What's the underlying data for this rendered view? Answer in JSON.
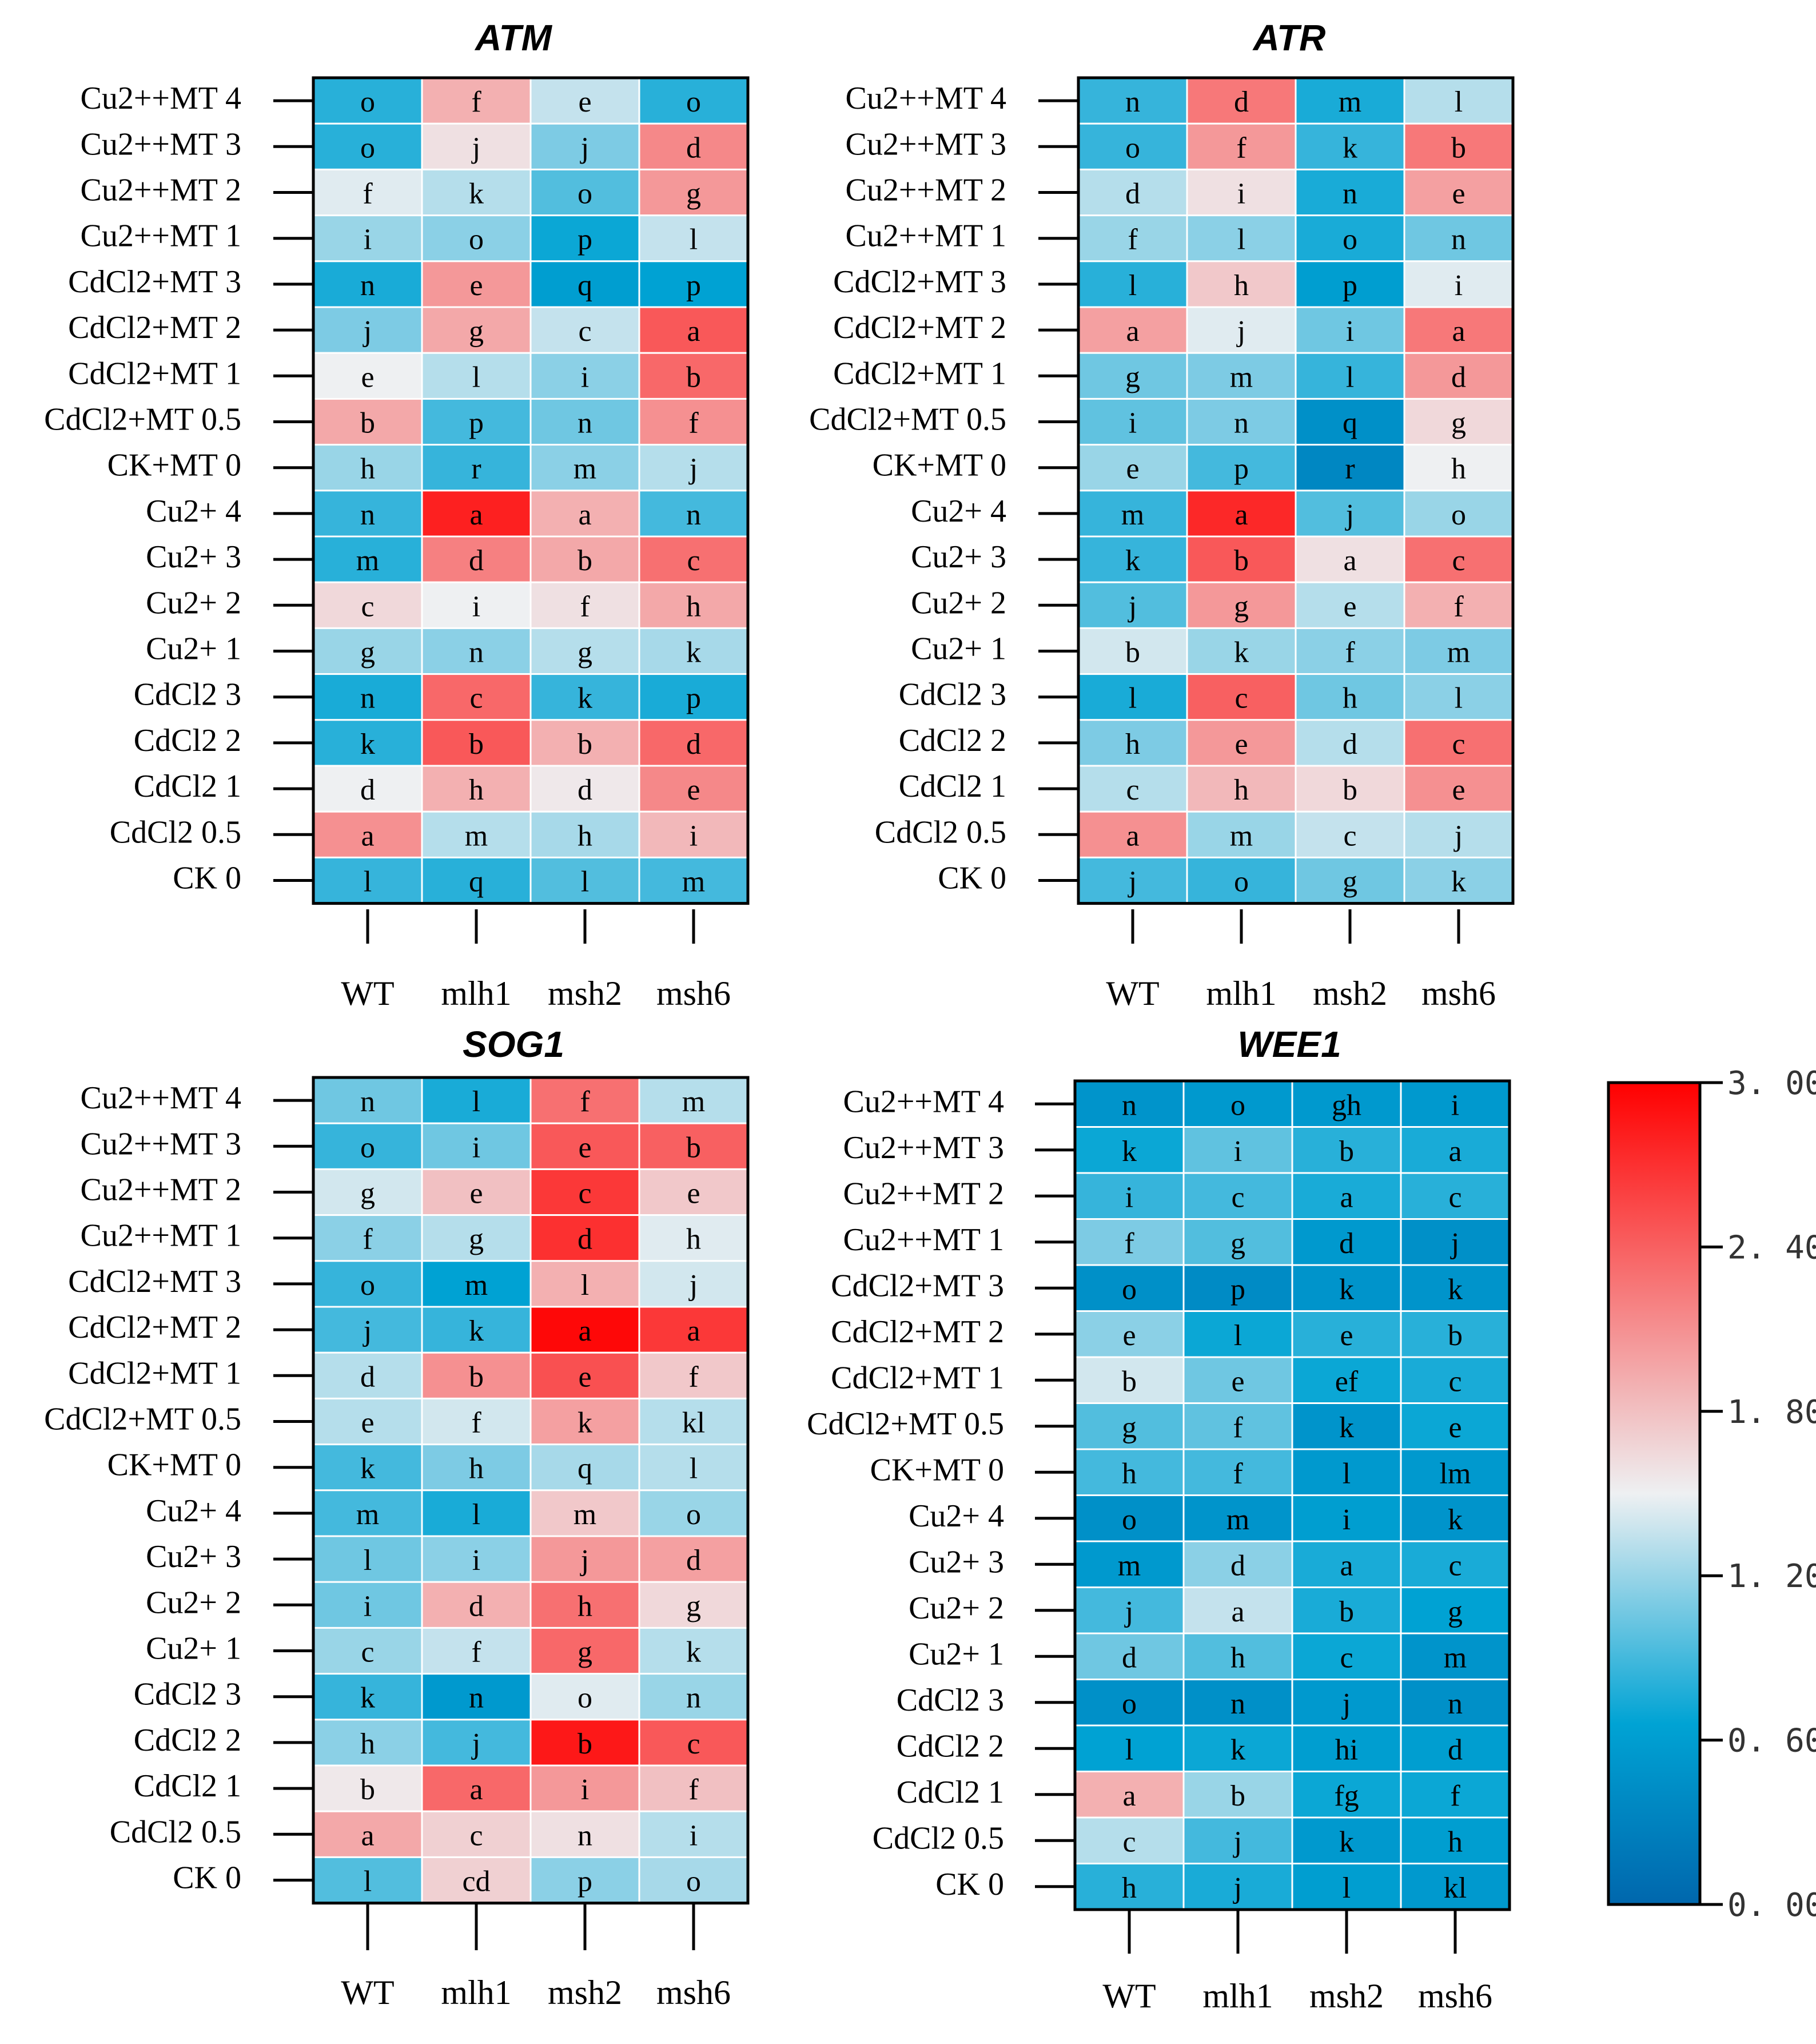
{
  "chart_data": {
    "type": "heatmap",
    "rows": [
      "Cu2++MT 4",
      "Cu2++MT 3",
      "Cu2++MT 2",
      "Cu2++MT 1",
      "CdCl2+MT 3",
      "CdCl2+MT 2",
      "CdCl2+MT 1",
      "CdCl2+MT 0.5",
      "CK+MT 0",
      "Cu2+ 4",
      "Cu2+ 3",
      "Cu2+ 2",
      "Cu2+ 1",
      "CdCl2 3",
      "CdCl2 2",
      "CdCl2 1",
      "CdCl2 0.5",
      "CK 0"
    ],
    "columns": [
      "WT",
      "mlh1",
      "msh2",
      "msh6"
    ],
    "colorbar": {
      "min": 0,
      "max": 3,
      "ticks": [
        "0. 00",
        "0. 60",
        "1. 20",
        "1. 80",
        "2. 40",
        "3. 00"
      ],
      "colors": [
        "#0067ad",
        "#00a3d4",
        "#eef0f2",
        "#ff0000"
      ]
    },
    "panels": [
      {
        "title": "ATM",
        "values": [
          [
            0.8,
            1.9,
            1.35,
            0.8
          ],
          [
            0.8,
            1.6,
            1.1,
            2.15
          ],
          [
            1.45,
            1.3,
            0.95,
            2.05
          ],
          [
            1.2,
            1.15,
            0.7,
            1.35
          ],
          [
            0.75,
            2.05,
            0.6,
            0.65
          ],
          [
            1.1,
            1.95,
            1.35,
            2.45
          ],
          [
            1.5,
            1.3,
            1.15,
            2.35
          ],
          [
            1.95,
            0.9,
            1.05,
            2.1
          ],
          [
            1.2,
            0.85,
            1.15,
            1.3
          ],
          [
            0.85,
            2.8,
            1.9,
            0.9
          ],
          [
            0.8,
            2.2,
            1.95,
            2.3
          ],
          [
            1.65,
            1.5,
            1.6,
            1.95
          ],
          [
            1.2,
            1.15,
            1.3,
            1.25
          ],
          [
            0.75,
            2.35,
            0.85,
            0.75
          ],
          [
            0.8,
            2.45,
            1.9,
            2.35
          ],
          [
            1.5,
            1.9,
            1.55,
            2.15
          ],
          [
            2.1,
            1.3,
            1.25,
            1.85
          ],
          [
            0.85,
            0.8,
            0.95,
            0.9
          ]
        ],
        "letters": [
          [
            "o",
            "f",
            "e",
            "o"
          ],
          [
            "o",
            "j",
            "j",
            "d"
          ],
          [
            "f",
            "k",
            "o",
            "g"
          ],
          [
            "i",
            "o",
            "p",
            "l"
          ],
          [
            "n",
            "e",
            "q",
            "p"
          ],
          [
            "j",
            "g",
            "c",
            "a"
          ],
          [
            "e",
            "l",
            "i",
            "b"
          ],
          [
            "b",
            "p",
            "n",
            "f"
          ],
          [
            "h",
            "r",
            "m",
            "j"
          ],
          [
            "n",
            "a",
            "a",
            "n"
          ],
          [
            "m",
            "d",
            "b",
            "c"
          ],
          [
            "c",
            "i",
            "f",
            "h"
          ],
          [
            "g",
            "n",
            "g",
            "k"
          ],
          [
            "n",
            "c",
            "k",
            "p"
          ],
          [
            "k",
            "b",
            "b",
            "d"
          ],
          [
            "d",
            "h",
            "d",
            "e"
          ],
          [
            "a",
            "m",
            "h",
            "i"
          ],
          [
            "l",
            "q",
            "l",
            "m"
          ]
        ]
      },
      {
        "title": "ATR",
        "values": [
          [
            0.85,
            2.25,
            0.75,
            1.3
          ],
          [
            0.85,
            2.05,
            0.85,
            2.25
          ],
          [
            1.3,
            1.6,
            0.75,
            2.0
          ],
          [
            1.2,
            1.15,
            0.75,
            1.05
          ],
          [
            0.8,
            1.75,
            0.6,
            1.45
          ],
          [
            2.0,
            1.45,
            1.05,
            2.25
          ],
          [
            1.05,
            1.1,
            0.85,
            2.05
          ],
          [
            1.0,
            1.1,
            0.45,
            1.65
          ],
          [
            1.2,
            0.9,
            0.35,
            1.5
          ],
          [
            0.85,
            2.75,
            0.95,
            1.2
          ],
          [
            0.85,
            2.45,
            1.6,
            2.3
          ],
          [
            0.95,
            2.05,
            1.3,
            1.9
          ],
          [
            1.4,
            1.2,
            1.15,
            1.1
          ],
          [
            0.75,
            2.4,
            1.05,
            1.15
          ],
          [
            1.1,
            2.05,
            1.3,
            2.3
          ],
          [
            1.3,
            1.85,
            1.65,
            2.1
          ],
          [
            2.1,
            1.2,
            1.35,
            1.3
          ],
          [
            0.9,
            0.85,
            1.05,
            1.15
          ]
        ],
        "letters": [
          [
            "n",
            "d",
            "m",
            "l"
          ],
          [
            "o",
            "f",
            "k",
            "b"
          ],
          [
            "d",
            "i",
            "n",
            "e"
          ],
          [
            "f",
            "l",
            "o",
            "n"
          ],
          [
            "l",
            "h",
            "p",
            "i"
          ],
          [
            "a",
            "j",
            "i",
            "a"
          ],
          [
            "g",
            "m",
            "l",
            "d"
          ],
          [
            "i",
            "n",
            "q",
            "g"
          ],
          [
            "e",
            "p",
            "r",
            "h"
          ],
          [
            "m",
            "a",
            "j",
            "o"
          ],
          [
            "k",
            "b",
            "a",
            "c"
          ],
          [
            "j",
            "g",
            "e",
            "f"
          ],
          [
            "b",
            "k",
            "f",
            "m"
          ],
          [
            "l",
            "c",
            "h",
            "l"
          ],
          [
            "h",
            "e",
            "d",
            "c"
          ],
          [
            "c",
            "h",
            "b",
            "e"
          ],
          [
            "a",
            "m",
            "c",
            "j"
          ],
          [
            "j",
            "o",
            "g",
            "k"
          ]
        ]
      },
      {
        "title": "SOG1",
        "values": [
          [
            1.05,
            0.75,
            2.3,
            1.3
          ],
          [
            0.85,
            1.05,
            2.45,
            2.4
          ],
          [
            1.4,
            1.8,
            2.65,
            1.75
          ],
          [
            1.15,
            1.3,
            2.7,
            1.45
          ],
          [
            0.85,
            0.65,
            1.9,
            1.4
          ],
          [
            0.9,
            0.85,
            2.95,
            2.65
          ],
          [
            1.3,
            2.1,
            2.5,
            1.75
          ],
          [
            1.3,
            1.4,
            2.0,
            1.3
          ],
          [
            0.9,
            1.1,
            1.25,
            1.3
          ],
          [
            0.9,
            0.75,
            1.75,
            1.2
          ],
          [
            1.05,
            1.15,
            2.05,
            2.0
          ],
          [
            1.05,
            1.9,
            2.3,
            1.65
          ],
          [
            1.2,
            1.35,
            2.35,
            1.3
          ],
          [
            0.85,
            0.55,
            1.45,
            1.2
          ],
          [
            1.15,
            0.9,
            2.85,
            2.45
          ],
          [
            1.55,
            2.35,
            2.05,
            1.8
          ],
          [
            1.95,
            1.7,
            1.6,
            1.3
          ],
          [
            0.95,
            1.7,
            1.15,
            1.25
          ]
        ],
        "letters": [
          [
            "n",
            "l",
            "f",
            "m"
          ],
          [
            "o",
            "i",
            "e",
            "b"
          ],
          [
            "g",
            "e",
            "c",
            "e"
          ],
          [
            "f",
            "g",
            "d",
            "h"
          ],
          [
            "o",
            "m",
            "l",
            "j"
          ],
          [
            "j",
            "k",
            "a",
            "a"
          ],
          [
            "d",
            "b",
            "e",
            "f"
          ],
          [
            "e",
            "f",
            "k",
            "kl"
          ],
          [
            "k",
            "h",
            "q",
            "l"
          ],
          [
            "m",
            "l",
            "m",
            "o"
          ],
          [
            "l",
            "i",
            "j",
            "d"
          ],
          [
            "i",
            "d",
            "h",
            "g"
          ],
          [
            "c",
            "f",
            "g",
            "k"
          ],
          [
            "k",
            "n",
            "o",
            "n"
          ],
          [
            "h",
            "j",
            "b",
            "c"
          ],
          [
            "b",
            "a",
            "i",
            "f"
          ],
          [
            "a",
            "c",
            "n",
            "i"
          ],
          [
            "l",
            "cd",
            "p",
            "o"
          ]
        ]
      },
      {
        "title": "WEE1",
        "values": [
          [
            0.5,
            0.55,
            0.55,
            0.55
          ],
          [
            0.7,
            1.0,
            0.8,
            0.75
          ],
          [
            0.85,
            0.9,
            0.75,
            0.8
          ],
          [
            1.1,
            0.95,
            0.55,
            0.45
          ],
          [
            0.45,
            0.4,
            0.5,
            0.5
          ],
          [
            1.15,
            0.7,
            0.8,
            0.8
          ],
          [
            1.4,
            1.05,
            0.7,
            0.75
          ],
          [
            0.95,
            1.0,
            0.5,
            0.7
          ],
          [
            0.9,
            0.9,
            0.55,
            0.55
          ],
          [
            0.45,
            0.5,
            0.6,
            0.5
          ],
          [
            0.55,
            1.15,
            0.75,
            0.75
          ],
          [
            0.9,
            1.35,
            0.75,
            0.65
          ],
          [
            1.05,
            0.95,
            0.7,
            0.5
          ],
          [
            0.45,
            0.45,
            0.55,
            0.45
          ],
          [
            0.65,
            0.7,
            0.6,
            0.6
          ],
          [
            1.9,
            1.2,
            0.7,
            0.7
          ],
          [
            1.3,
            0.9,
            0.55,
            0.6
          ],
          [
            0.8,
            0.75,
            0.6,
            0.55
          ]
        ],
        "letters": [
          [
            "n",
            "o",
            "gh",
            "i"
          ],
          [
            "k",
            "i",
            "b",
            "a"
          ],
          [
            "i",
            "c",
            "a",
            "c"
          ],
          [
            "f",
            "g",
            "d",
            "j"
          ],
          [
            "o",
            "p",
            "k",
            "k"
          ],
          [
            "e",
            "l",
            "e",
            "b"
          ],
          [
            "b",
            "e",
            "ef",
            "c"
          ],
          [
            "g",
            "f",
            "k",
            "e"
          ],
          [
            "h",
            "f",
            "l",
            "lm"
          ],
          [
            "o",
            "m",
            "i",
            "k"
          ],
          [
            "m",
            "d",
            "a",
            "c"
          ],
          [
            "j",
            "a",
            "b",
            "g"
          ],
          [
            "d",
            "h",
            "c",
            "m"
          ],
          [
            "o",
            "n",
            "j",
            "n"
          ],
          [
            "l",
            "k",
            "hi",
            "d"
          ],
          [
            "a",
            "b",
            "fg",
            "f"
          ],
          [
            "c",
            "j",
            "k",
            "h"
          ],
          [
            "h",
            "j",
            "l",
            "kl"
          ]
        ]
      }
    ]
  }
}
